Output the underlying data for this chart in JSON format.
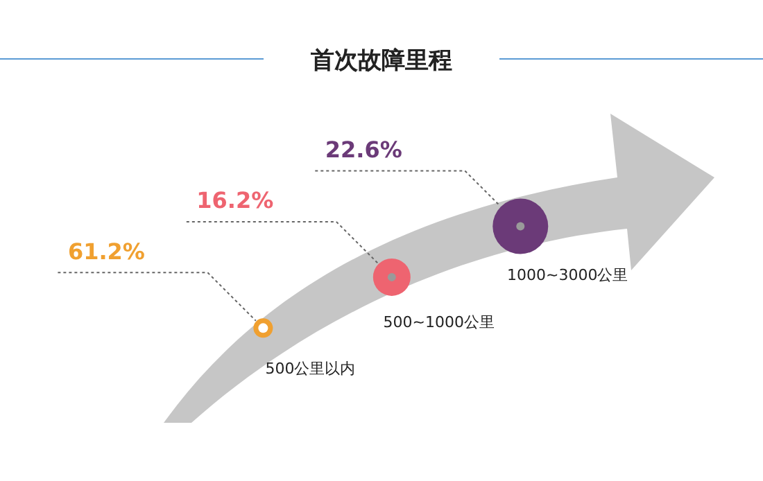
{
  "chart_data": {
    "type": "other",
    "title": "首次故障里程",
    "categories": [
      "500公里以内",
      "500~1000公里",
      "1000~3000公里"
    ],
    "values": [
      61.2,
      16.2,
      22.6
    ],
    "value_labels": [
      "61.2%",
      "16.2%",
      "22.6%"
    ],
    "colors": [
      "#f0a030",
      "#ee6470",
      "#6b3a78"
    ]
  }
}
